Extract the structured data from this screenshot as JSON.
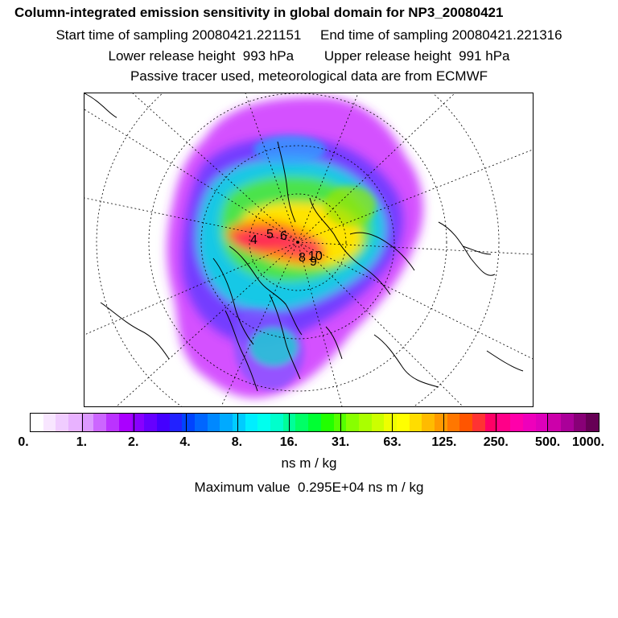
{
  "header": {
    "title": "Column-integrated emission sensitivity in global domain for NP3_20080421",
    "line2": "Start time of sampling 20080421.221151     End time of sampling 20080421.221316",
    "line3": "Lower release height  993 hPa        Upper release height  991 hPa",
    "line4": "Passive tracer used, meteorological data are from ECMWF"
  },
  "map": {
    "projection": "polar stereographic (north polar)",
    "labels": [
      "5",
      "6",
      "4",
      "8",
      "10",
      "9"
    ],
    "colors": {
      "background": "#ffffff",
      "coastline": "#000000",
      "grid": "#000000"
    }
  },
  "colorbar": {
    "ticks": [
      "0.",
      "1.",
      "2.",
      "4.",
      "8.",
      "16.",
      "31.",
      "63.",
      "125.",
      "250.",
      "500.",
      "1000."
    ],
    "colors": [
      "#ffffff",
      "#f8e6ff",
      "#f0ccff",
      "#e8b2ff",
      "#dc99ff",
      "#cc66ff",
      "#bb33ff",
      "#aa00ff",
      "#8800ff",
      "#6600ff",
      "#4400ff",
      "#2222ff",
      "#0044ff",
      "#0066ff",
      "#0088ff",
      "#00aaff",
      "#00ccff",
      "#00eeff",
      "#00ffee",
      "#00ffcc",
      "#00ff99",
      "#00ff66",
      "#00ff33",
      "#22ff00",
      "#55ff00",
      "#88ff00",
      "#aaff00",
      "#ccff00",
      "#eeff00",
      "#ffff00",
      "#ffdd00",
      "#ffbb00",
      "#ff9900",
      "#ff7700",
      "#ff5500",
      "#ff3333",
      "#ff0066",
      "#ff0088",
      "#ff00aa",
      "#ee00bb",
      "#dd00bb",
      "#cc00aa",
      "#aa0099",
      "#880077",
      "#660055"
    ],
    "unit": "ns m / kg"
  },
  "footer": {
    "max_value": "Maximum value  0.295E+04 ns m / kg"
  }
}
